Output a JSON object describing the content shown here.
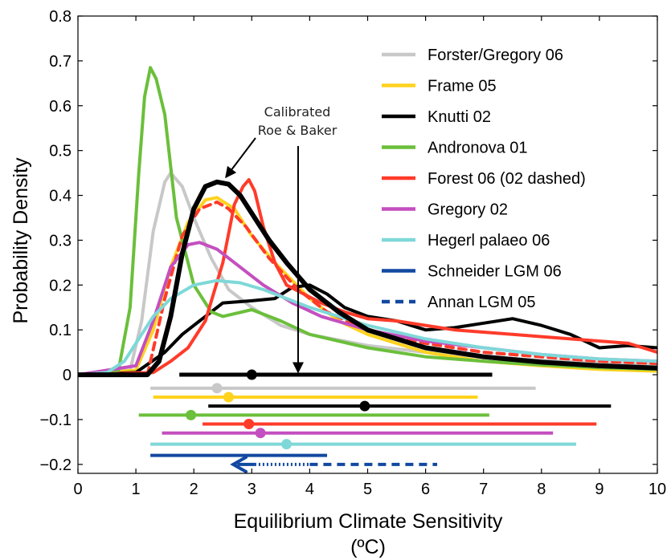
{
  "chart_data": {
    "type": "line",
    "title": "",
    "xlabel_line1": "Equilibrium Climate Sensitivity",
    "xlabel_line2": "(ºC)",
    "ylabel": "Probability Density",
    "xlim": [
      0,
      10
    ],
    "ylim": [
      -0.22,
      0.8
    ],
    "x_ticks": [
      0,
      1,
      2,
      3,
      4,
      5,
      6,
      7,
      8,
      9,
      10
    ],
    "y_ticks": [
      -0.2,
      -0.1,
      0,
      0.1,
      0.2,
      0.3,
      0.4,
      0.5,
      0.6,
      0.7,
      0.8
    ],
    "y_tick_labels": [
      "−0.2",
      "−0.1",
      "0",
      "0.1",
      "0.2",
      "0.3",
      "0.4",
      "0.5",
      "0.6",
      "0.7",
      "0.8"
    ],
    "grid": false,
    "legend_position": "top-right",
    "annotation": {
      "text_line1": "Calibrated",
      "text_line2": "Roe & Baker"
    },
    "series": [
      {
        "name": "Forster/Gregory 06",
        "color": "#c8c8c8",
        "dash": false,
        "width": 4,
        "x": [
          0,
          0.9,
          1.1,
          1.3,
          1.5,
          1.6,
          1.8,
          2.0,
          2.3,
          2.6,
          3.0,
          3.5,
          4.0,
          5.0,
          6.0,
          7.0,
          8.0,
          9.0,
          10.0
        ],
        "y": [
          0,
          0.01,
          0.12,
          0.32,
          0.43,
          0.45,
          0.42,
          0.35,
          0.26,
          0.19,
          0.15,
          0.11,
          0.09,
          0.065,
          0.05,
          0.04,
          0.032,
          0.027,
          0.022
        ]
      },
      {
        "name": "Frame 05",
        "color": "#ffd21e",
        "dash": false,
        "width": 4,
        "x": [
          0,
          1.0,
          1.3,
          1.6,
          1.9,
          2.2,
          2.4,
          2.7,
          3.0,
          3.4,
          4.0,
          4.5,
          5.0,
          6.0,
          7.0,
          8.0,
          9.0,
          10.0
        ],
        "y": [
          0,
          0.01,
          0.1,
          0.24,
          0.34,
          0.39,
          0.395,
          0.37,
          0.31,
          0.25,
          0.17,
          0.12,
          0.09,
          0.05,
          0.03,
          0.02,
          0.012,
          0.008
        ]
      },
      {
        "name": "Knutti 02",
        "color": "#000000",
        "dash": false,
        "width": 4,
        "x": [
          0,
          1.0,
          1.5,
          1.8,
          2.1,
          2.5,
          3.0,
          3.4,
          3.7,
          4.0,
          4.3,
          4.6,
          5.0,
          5.5,
          6.0,
          6.5,
          7.0,
          7.5,
          8.0,
          8.5,
          9.0,
          9.5,
          10.0
        ],
        "y": [
          0,
          0.005,
          0.05,
          0.09,
          0.12,
          0.16,
          0.165,
          0.17,
          0.195,
          0.2,
          0.18,
          0.15,
          0.13,
          0.12,
          0.1,
          0.105,
          0.115,
          0.125,
          0.11,
          0.09,
          0.06,
          0.065,
          0.06
        ]
      },
      {
        "name": "Andronova 01",
        "color": "#6bbf3b",
        "dash": false,
        "width": 4,
        "x": [
          0,
          0.7,
          0.9,
          1.05,
          1.15,
          1.25,
          1.35,
          1.5,
          1.7,
          2.0,
          2.3,
          2.5,
          3.0,
          3.5,
          4.0,
          5.0,
          6.0,
          7.0,
          8.0,
          9.0,
          10.0
        ],
        "y": [
          0,
          0.01,
          0.15,
          0.45,
          0.62,
          0.685,
          0.66,
          0.58,
          0.35,
          0.2,
          0.14,
          0.13,
          0.145,
          0.12,
          0.09,
          0.06,
          0.04,
          0.03,
          0.022,
          0.016,
          0.012
        ]
      },
      {
        "name": "Forest 06 (02 dashed)",
        "color": "#ff3b2a",
        "dash": false,
        "width": 4,
        "x": [
          0,
          1.3,
          1.6,
          1.9,
          2.2,
          2.5,
          2.7,
          2.85,
          2.95,
          3.05,
          3.2,
          3.4,
          3.6,
          3.9,
          4.2,
          4.6,
          5.0,
          5.5,
          6.0,
          6.5,
          7.0,
          7.5,
          8.0,
          8.5,
          9.0,
          9.5,
          10.0
        ],
        "y": [
          0,
          0.005,
          0.03,
          0.06,
          0.12,
          0.25,
          0.38,
          0.42,
          0.435,
          0.41,
          0.33,
          0.25,
          0.2,
          0.18,
          0.16,
          0.14,
          0.125,
          0.12,
          0.11,
          0.1,
          0.095,
          0.09,
          0.085,
          0.08,
          0.075,
          0.07,
          0.05
        ]
      },
      {
        "name": "Forest 02 (dashed)",
        "color": "#ff3b2a",
        "dash": true,
        "width": 4,
        "x": [
          1.2,
          1.5,
          1.8,
          2.1,
          2.4,
          2.6,
          2.9,
          3.3,
          3.8,
          4.3,
          5.0,
          6.0,
          7.0,
          8.0,
          9.0,
          10.0
        ],
        "y": [
          0.0,
          0.17,
          0.31,
          0.37,
          0.385,
          0.37,
          0.33,
          0.26,
          0.19,
          0.14,
          0.1,
          0.07,
          0.05,
          0.04,
          0.03,
          0.025
        ]
      },
      {
        "name": "Gregory 02",
        "color": "#c44fbf",
        "dash": false,
        "width": 4,
        "x": [
          0,
          1.0,
          1.3,
          1.6,
          1.9,
          2.1,
          2.4,
          2.8,
          3.2,
          3.7,
          4.2,
          5.0,
          6.0,
          7.0,
          8.0,
          9.0,
          10.0
        ],
        "y": [
          0,
          0.02,
          0.12,
          0.24,
          0.29,
          0.295,
          0.28,
          0.24,
          0.2,
          0.16,
          0.13,
          0.1,
          0.075,
          0.06,
          0.045,
          0.035,
          0.03
        ]
      },
      {
        "name": "Hegerl palaeo 06",
        "color": "#7fd8d8",
        "dash": false,
        "width": 4,
        "x": [
          0,
          0.5,
          0.8,
          1.0,
          1.3,
          1.6,
          2.0,
          2.4,
          2.8,
          3.2,
          3.6,
          4.0,
          4.5,
          5.0,
          6.0,
          7.0,
          8.0,
          9.0,
          10.0
        ],
        "y": [
          0,
          0.005,
          0.03,
          0.07,
          0.13,
          0.17,
          0.2,
          0.21,
          0.205,
          0.19,
          0.17,
          0.15,
          0.13,
          0.11,
          0.08,
          0.06,
          0.045,
          0.035,
          0.03
        ]
      },
      {
        "name": "Calibrated Roe & Baker",
        "color": "#000000",
        "dash": false,
        "width": 6,
        "x": [
          0,
          1.2,
          1.4,
          1.6,
          1.8,
          2.0,
          2.2,
          2.4,
          2.6,
          2.8,
          3.0,
          3.3,
          3.6,
          4.0,
          4.5,
          5.0,
          5.5,
          6.0,
          7.0,
          8.0,
          9.0,
          10.0
        ],
        "y": [
          0,
          0.0,
          0.03,
          0.13,
          0.27,
          0.37,
          0.42,
          0.43,
          0.425,
          0.4,
          0.36,
          0.3,
          0.25,
          0.19,
          0.14,
          0.1,
          0.08,
          0.06,
          0.04,
          0.028,
          0.02,
          0.015
        ]
      }
    ],
    "legend": [
      {
        "label": "Forster/Gregory 06",
        "color": "#c8c8c8",
        "dash": false
      },
      {
        "label": "Frame 05",
        "color": "#ffd21e",
        "dash": false
      },
      {
        "label": "Knutti 02",
        "color": "#000000",
        "dash": false
      },
      {
        "label": "Andronova 01",
        "color": "#6bbf3b",
        "dash": false
      },
      {
        "label": "Forest 06 (02 dashed)",
        "color": "#ff3b2a",
        "dash": false
      },
      {
        "label": "Gregory 02",
        "color": "#c44fbf",
        "dash": false
      },
      {
        "label": "Hegerl palaeo 06",
        "color": "#7fd8d8",
        "dash": false
      },
      {
        "label": "Schneider LGM 06",
        "color": "#1248a0",
        "dash": false
      },
      {
        "label": "Annan LGM 05",
        "color": "#1248a0",
        "dash": true
      }
    ],
    "ranges": [
      {
        "name": "Calibrated Roe & Baker",
        "color": "#000000",
        "y": 0.0,
        "lo": 1.75,
        "hi": 7.15,
        "best": 3.0,
        "width": 5
      },
      {
        "name": "Forster/Gregory 06",
        "color": "#c8c8c8",
        "y": -0.03,
        "lo": 1.25,
        "hi": 7.9,
        "best": 2.4,
        "width": 4
      },
      {
        "name": "Frame 05",
        "color": "#ffd21e",
        "y": -0.05,
        "lo": 1.3,
        "hi": 6.9,
        "best": 2.6,
        "width": 4
      },
      {
        "name": "Knutti 02",
        "color": "#000000",
        "y": -0.07,
        "lo": 2.25,
        "hi": 9.2,
        "best": 4.95,
        "width": 4
      },
      {
        "name": "Andronova 01",
        "color": "#6bbf3b",
        "y": -0.09,
        "lo": 1.05,
        "hi": 7.1,
        "best": 1.95,
        "width": 4
      },
      {
        "name": "Forest 06",
        "color": "#ff3b2a",
        "y": -0.11,
        "lo": 2.15,
        "hi": 8.95,
        "best": 2.95,
        "width": 4
      },
      {
        "name": "Gregory 02",
        "color": "#c44fbf",
        "y": -0.13,
        "lo": 1.45,
        "hi": 8.2,
        "best": 3.15,
        "width": 4
      },
      {
        "name": "Hegerl palaeo 06",
        "color": "#7fd8d8",
        "y": -0.155,
        "lo": 1.25,
        "hi": 8.6,
        "best": 3.6,
        "width": 4
      },
      {
        "name": "Schneider LGM 06",
        "color": "#1248a0",
        "y": -0.18,
        "lo": 1.25,
        "hi": 4.3,
        "best": null,
        "width": 4
      }
    ],
    "annan_bar": {
      "name": "Annan LGM 05",
      "color": "#1248a0",
      "y": -0.2,
      "lo": 2.75,
      "hi": 6.2
    }
  }
}
